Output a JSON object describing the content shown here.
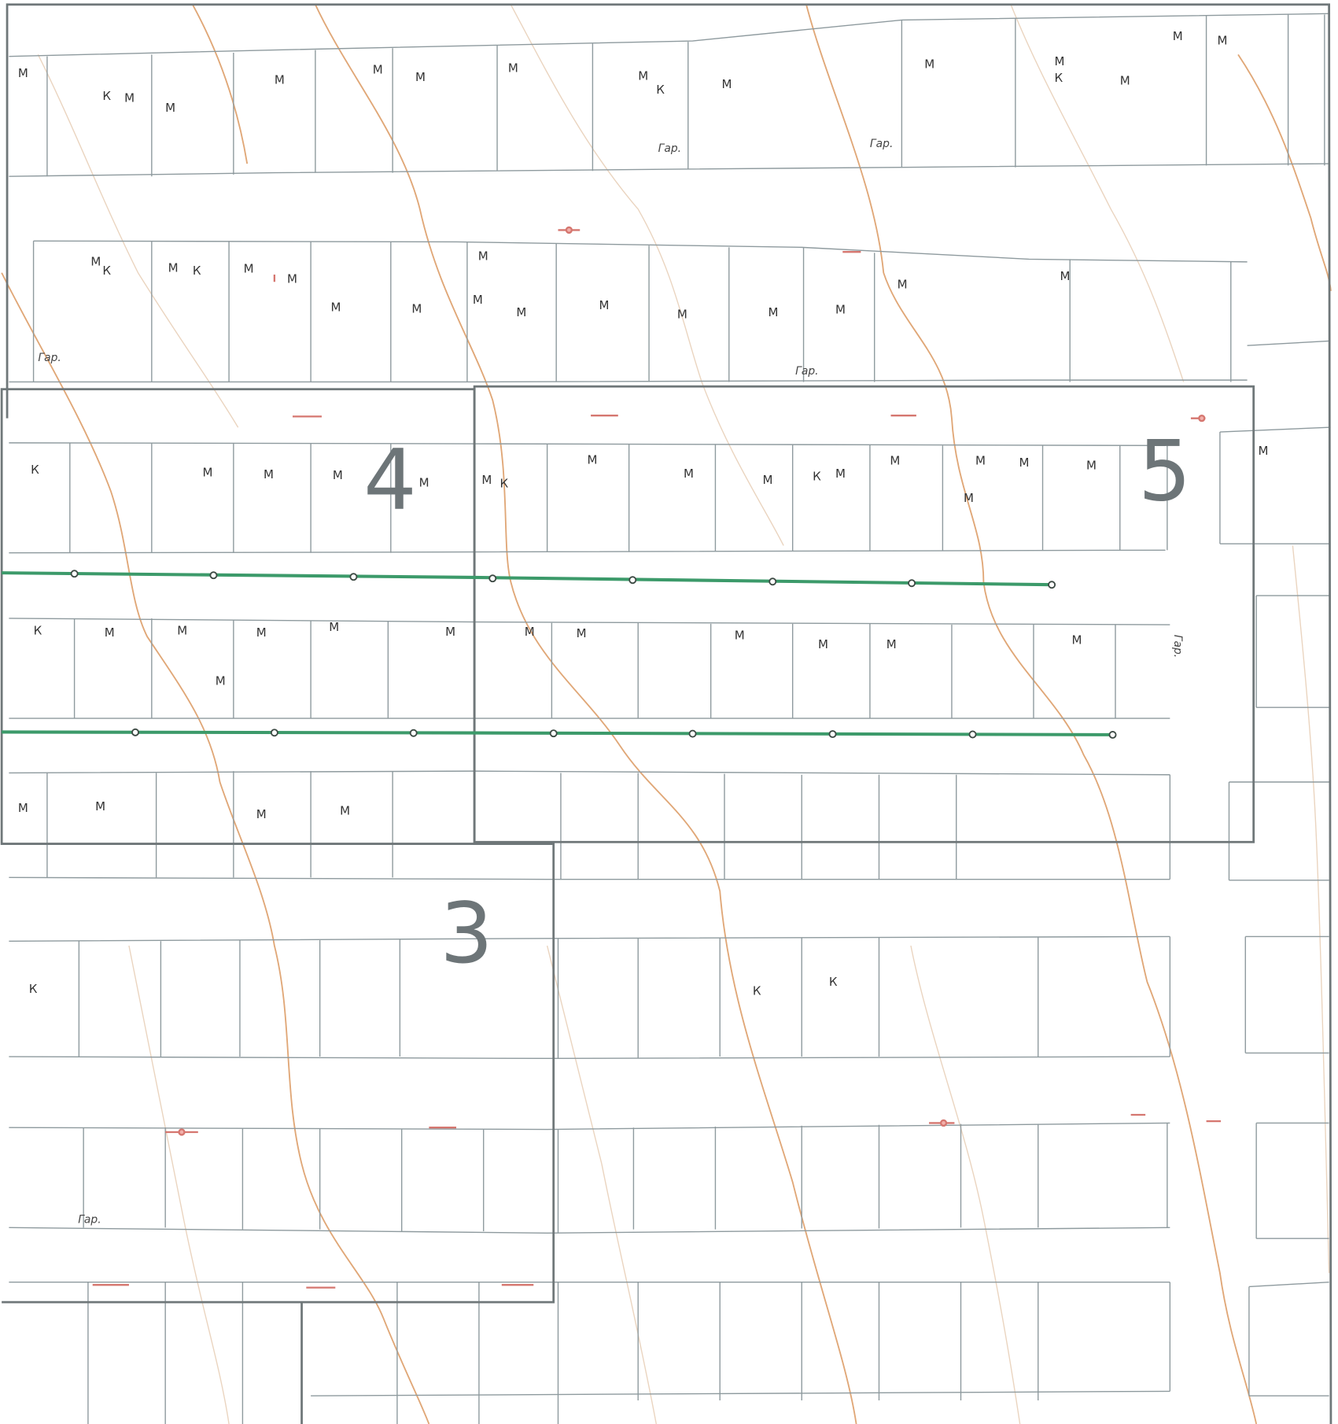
{
  "sheets": [
    "4",
    "5",
    "3"
  ],
  "gar_labels": [
    "Гар.",
    "Гар.",
    "Гар.",
    "Гар.",
    "Гар.",
    "Гар."
  ],
  "letters": [
    "М",
    "М",
    "М",
    "М",
    "М",
    "М",
    "М",
    "М",
    "М",
    "М",
    "М",
    "М",
    "М",
    "М",
    "М",
    "М",
    "М",
    "М",
    "М",
    "М",
    "М",
    "М",
    "М",
    "М",
    "М",
    "М",
    "М",
    "М",
    "М",
    "М",
    "М",
    "М",
    "М",
    "М",
    "М",
    "М",
    "М",
    "М",
    "М",
    "М",
    "М",
    "М",
    "М",
    "М",
    "М",
    "М",
    "М",
    "М",
    "М",
    "М",
    "М",
    "М",
    "М",
    "М",
    "М",
    "М",
    "М",
    "М",
    "М",
    "М",
    "К",
    "К",
    "К",
    "К",
    "К",
    "К",
    "К",
    "К",
    "К",
    "К",
    "К",
    "К"
  ]
}
